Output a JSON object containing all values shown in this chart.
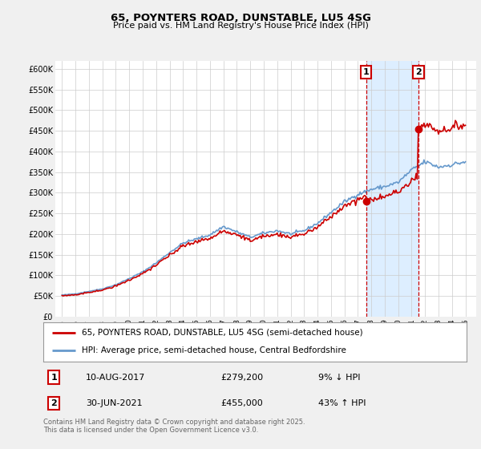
{
  "title": "65, POYNTERS ROAD, DUNSTABLE, LU5 4SG",
  "subtitle": "Price paid vs. HM Land Registry's House Price Index (HPI)",
  "legend_line1": "65, POYNTERS ROAD, DUNSTABLE, LU5 4SG (semi-detached house)",
  "legend_line2": "HPI: Average price, semi-detached house, Central Bedfordshire",
  "annotation1_label": "1",
  "annotation1_date": "10-AUG-2017",
  "annotation1_price": "£279,200",
  "annotation1_hpi": "9% ↓ HPI",
  "annotation2_label": "2",
  "annotation2_date": "30-JUN-2021",
  "annotation2_price": "£455,000",
  "annotation2_hpi": "43% ↑ HPI",
  "footnote": "Contains HM Land Registry data © Crown copyright and database right 2025.\nThis data is licensed under the Open Government Licence v3.0.",
  "ylim": [
    0,
    620000
  ],
  "yticks": [
    0,
    50000,
    100000,
    150000,
    200000,
    250000,
    300000,
    350000,
    400000,
    450000,
    500000,
    550000,
    600000
  ],
  "ytick_labels": [
    "£0",
    "£50K",
    "£100K",
    "£150K",
    "£200K",
    "£250K",
    "£300K",
    "£350K",
    "£400K",
    "£450K",
    "£500K",
    "£550K",
    "£600K"
  ],
  "bg_color": "#f0f0f0",
  "plot_bg_color": "#ffffff",
  "line_color_red": "#cc0000",
  "line_color_blue": "#6699cc",
  "shade_color": "#ddeeff",
  "marker1_x": 2017.61,
  "marker1_y": 279200,
  "marker2_x": 2021.5,
  "marker2_y": 455000,
  "vline1_x": 2017.61,
  "vline2_x": 2021.5,
  "xlim": [
    1994.5,
    2025.8
  ]
}
